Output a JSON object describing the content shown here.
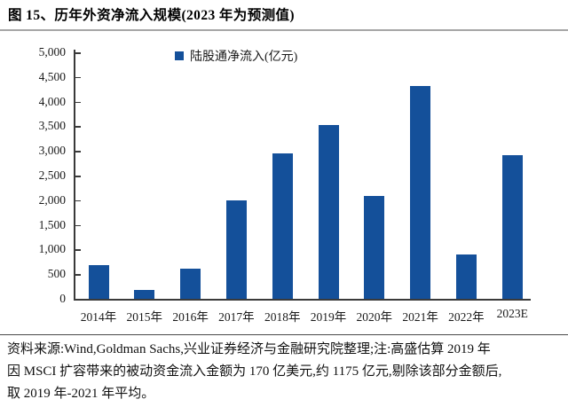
{
  "header": {
    "title": "图 15、历年外资净流入规模(2023 年为预测值)"
  },
  "chart_data": {
    "type": "bar",
    "title": "图 15、历年外资净流入规模(2023 年为预测值)",
    "legend": [
      {
        "label": "陆股通净流入(亿元)",
        "color": "#14509A"
      }
    ],
    "legend_position": "top-center",
    "categories": [
      "2014年",
      "2015年",
      "2016年",
      "2017年",
      "2018年",
      "2019年",
      "2020年",
      "2021年",
      "2022年",
      "2023E"
    ],
    "values": [
      686,
      185,
      607,
      1997,
      2942,
      3517,
      2089,
      4322,
      900,
      2920
    ],
    "xlabel": "",
    "ylabel": "",
    "ylim": [
      0,
      5000
    ],
    "ytick_step": 500,
    "ytick_labels": [
      "0",
      "500",
      "1,000",
      "1,500",
      "2,000",
      "2,500",
      "3,000",
      "3,500",
      "4,000",
      "4,500",
      "5,000"
    ],
    "grid": false,
    "bar_color": "#14509A",
    "axis_color": "#3a3a3a"
  },
  "footer": {
    "lines": [
      "资料来源:Wind,Goldman Sachs,兴业证券经济与金融研究院整理;注:高盛估算 2019 年",
      "因 MSCI 扩容带来的被动资金流入金额为 170 亿美元,约 1175 亿元,剔除该部分金额后,",
      "取 2019 年-2021 年平均。"
    ]
  }
}
